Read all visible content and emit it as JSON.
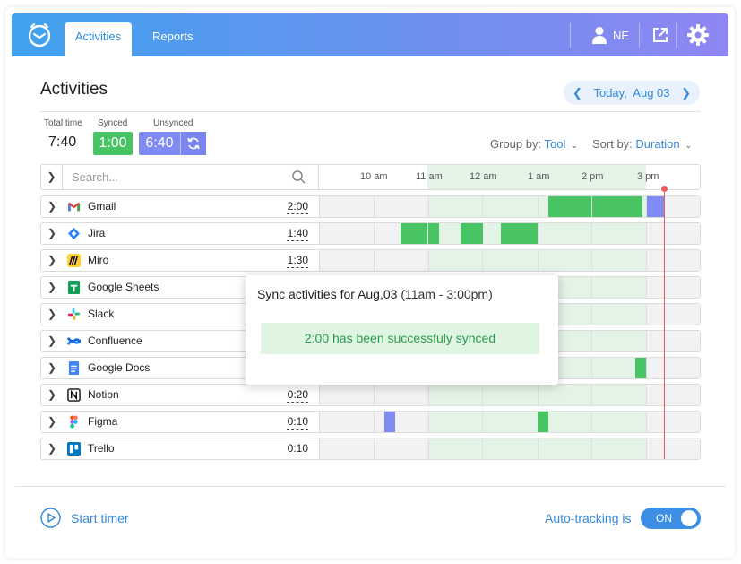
{
  "header": {
    "tabs": [
      {
        "label": "Activities",
        "active": true
      },
      {
        "label": "Reports",
        "active": false
      }
    ],
    "user_initials": "NE"
  },
  "main": {
    "title": "Activities",
    "date": "Today,  Aug 03",
    "stats": {
      "total_label": "Total time",
      "total_value": "7:40",
      "synced_label": "Synced",
      "synced_value": "1:00",
      "unsynced_label": "Unsynced",
      "unsynced_value": "6:40"
    },
    "group_by": {
      "label": "Group by:",
      "value": "Tool"
    },
    "sort_by": {
      "label": "Sort by:",
      "value": "Duration"
    },
    "search_placeholder": "Search...",
    "hours": [
      "10 am",
      "11 am",
      "12 am",
      "1 am",
      "2 pm",
      "3 pm"
    ],
    "rows": [
      {
        "name": "Gmail",
        "duration": "2:00",
        "icon": "gmail-icon"
      },
      {
        "name": "Jira",
        "duration": "1:40",
        "icon": "jira-icon"
      },
      {
        "name": "Miro",
        "duration": "1:30",
        "icon": "miro-icon"
      },
      {
        "name": "Google Sheets",
        "duration": "",
        "icon": "google-sheets-icon"
      },
      {
        "name": "Slack",
        "duration": "",
        "icon": "slack-icon"
      },
      {
        "name": "Confluence",
        "duration": "",
        "icon": "confluence-icon"
      },
      {
        "name": "Google Docs",
        "duration": "",
        "icon": "google-docs-icon"
      },
      {
        "name": "Notion",
        "duration": "0:20",
        "icon": "notion-icon"
      },
      {
        "name": "Figma",
        "duration": "0:10",
        "icon": "figma-icon"
      },
      {
        "name": "Trello",
        "duration": "0:10",
        "icon": "trello-icon"
      }
    ]
  },
  "popup": {
    "title": "Sync activities for Aug,03",
    "range": "(11am - 3:00pm)",
    "message": "2:00 has been successfuly synced"
  },
  "footer": {
    "start_timer": "Start timer",
    "auto_tracking_label": "Auto-tracking is",
    "toggle_state": "ON"
  },
  "colors": {
    "synced": "#49c465",
    "unsynced": "#7f8bf0",
    "accent": "#3388dd",
    "now": "#f05a5a"
  }
}
